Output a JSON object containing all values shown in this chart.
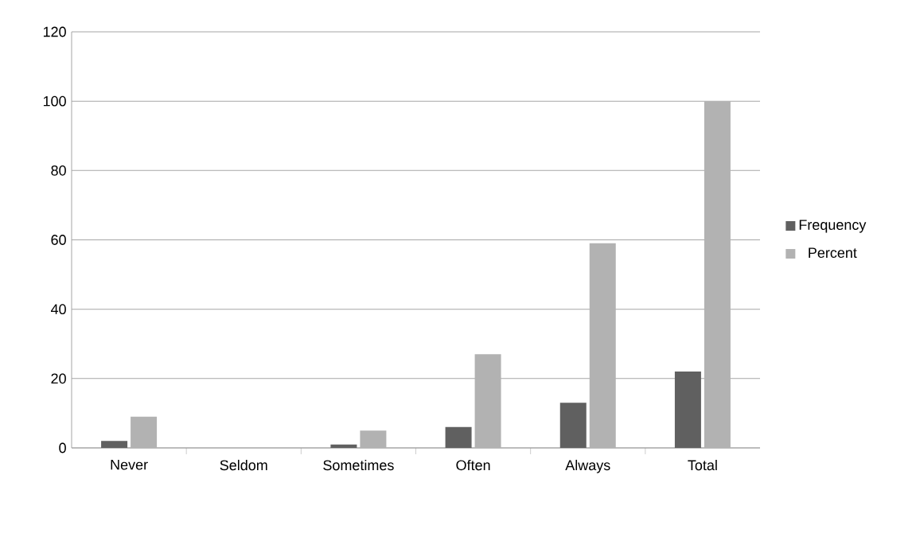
{
  "chart_data": {
    "type": "bar",
    "categories": [
      "Never",
      "Seldom",
      "Sometimes",
      "Often",
      "Always",
      "Total"
    ],
    "series": [
      {
        "name": "Frequency",
        "color": "#606060",
        "values": [
          2,
          0,
          1,
          6,
          13,
          22
        ]
      },
      {
        "name": "Percent",
        "color": "#b2b2b2",
        "values": [
          9,
          0,
          5,
          27,
          59,
          100
        ]
      }
    ],
    "ylim": [
      0,
      120
    ],
    "yticks": [
      0,
      20,
      40,
      60,
      80,
      100,
      120
    ],
    "grid": "y",
    "legend": "right"
  }
}
